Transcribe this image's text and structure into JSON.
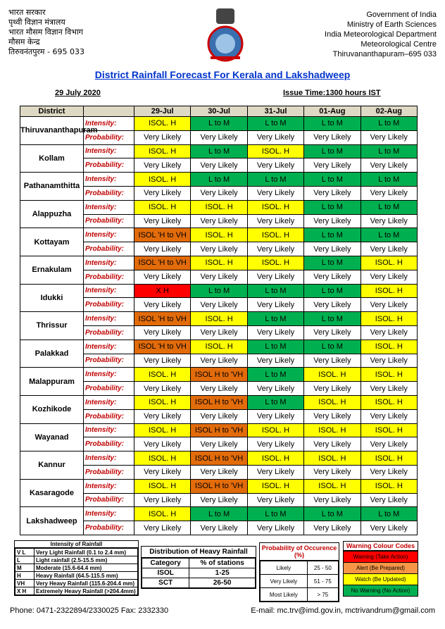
{
  "header": {
    "left": [
      "भारत सरकार",
      "पृथ्वी विज्ञान मंत्रालय",
      "भारत मौसम विज्ञान विभाग",
      "मौसम केन्द्र",
      "तिरुवनंतपुरम - 695 033"
    ],
    "right": [
      "Government of India",
      "Ministry of Earth Sciences",
      "India Meteorological Department",
      "Meteorological Centre",
      "Thiruvananthapuram–695 033"
    ]
  },
  "title": "District Rainfall Forecast For Kerala and Lakshadweep",
  "date": "29 July 2020",
  "issue_time": "Issue Time:1300 hours IST",
  "table": {
    "district_header": "District",
    "days": [
      "29-Jul",
      "30-Jul",
      "31-Jul",
      "01-Aug",
      "02-Aug"
    ],
    "intensity_label": "Intensity:",
    "probability_label": "Probability:",
    "rows": [
      {
        "district": "Thiruvananthapuram",
        "intensity": [
          "ISOL. H",
          "L to M",
          "L to M",
          "L to M",
          "L to M"
        ],
        "colors": [
          "yellow",
          "#00b050",
          "#00b050",
          "#00b050",
          "#00b050"
        ],
        "probability": [
          "Very Likely",
          "Very Likely",
          "Very Likely",
          "Very Likely",
          "Very Likely"
        ]
      },
      {
        "district": "Kollam",
        "intensity": [
          "ISOL. H",
          "L to M",
          "ISOL. H",
          "L to M",
          "L to M"
        ],
        "colors": [
          "yellow",
          "#00b050",
          "yellow",
          "#00b050",
          "#00b050"
        ],
        "probability": [
          "Very Likely",
          "Very Likely",
          "Very Likely",
          "Very Likely",
          "Very Likely"
        ]
      },
      {
        "district": "Pathanamthitta",
        "intensity": [
          "ISOL. H",
          "L to M",
          "L to M",
          "L to M",
          "L to M"
        ],
        "colors": [
          "yellow",
          "#00b050",
          "#00b050",
          "#00b050",
          "#00b050"
        ],
        "probability": [
          "Very Likely",
          "Very Likely",
          "Very Likely",
          "Very Likely",
          "Very Likely"
        ]
      },
      {
        "district": "Alappuzha",
        "intensity": [
          "ISOL. H",
          "ISOL. H",
          "ISOL. H",
          "L to M",
          "L to M"
        ],
        "colors": [
          "yellow",
          "yellow",
          "yellow",
          "#00b050",
          "#00b050"
        ],
        "probability": [
          "Very Likely",
          "Very Likely",
          "Very Likely",
          "Very Likely",
          "Very Likely"
        ]
      },
      {
        "district": "Kottayam",
        "intensity": [
          "ISOL 'H to VH",
          "ISOL. H",
          "ISOL. H",
          "L to M",
          "L to M"
        ],
        "colors": [
          "#e26b0a",
          "yellow",
          "yellow",
          "#00b050",
          "#00b050"
        ],
        "probability": [
          "Very Likely",
          "Very Likely",
          "Very Likely",
          "Very Likely",
          "Very Likely"
        ]
      },
      {
        "district": "Ernakulam",
        "intensity": [
          "ISOL 'H to VH",
          "ISOL. H",
          "ISOL. H",
          "L to M",
          "ISOL. H"
        ],
        "colors": [
          "#e26b0a",
          "yellow",
          "yellow",
          "#00b050",
          "yellow"
        ],
        "probability": [
          "Very Likely",
          "Very Likely",
          "Very Likely",
          "Very Likely",
          "Very Likely"
        ]
      },
      {
        "district": "Idukki",
        "intensity": [
          "X H",
          "L to M",
          "L to M",
          "L to M",
          "ISOL. H"
        ],
        "colors": [
          "red",
          "#00b050",
          "#00b050",
          "#00b050",
          "yellow"
        ],
        "probability": [
          "Very Likely",
          "Very Likely",
          "Very Likely",
          "Very Likely",
          "Very Likely"
        ]
      },
      {
        "district": "Thrissur",
        "intensity": [
          "ISOL 'H to VH",
          "ISOL. H",
          "L to M",
          "L to M",
          "ISOL. H"
        ],
        "colors": [
          "#e26b0a",
          "yellow",
          "#00b050",
          "#00b050",
          "yellow"
        ],
        "probability": [
          "Very Likely",
          "Very Likely",
          "Very Likely",
          "Very Likely",
          "Very Likely"
        ]
      },
      {
        "district": "Palakkad",
        "intensity": [
          "ISOL 'H to VH",
          "ISOL. H",
          "L to M",
          "L to M",
          "ISOL. H"
        ],
        "colors": [
          "#e26b0a",
          "yellow",
          "#00b050",
          "#00b050",
          "yellow"
        ],
        "probability": [
          "Very Likely",
          "Very Likely",
          "Very Likely",
          "Very Likely",
          "Very Likely"
        ]
      },
      {
        "district": "Malappuram",
        "intensity": [
          "ISOL. H",
          "ISOL H to 'VH",
          "L to M",
          "ISOL. H",
          "ISOL. H"
        ],
        "colors": [
          "yellow",
          "#e26b0a",
          "#00b050",
          "yellow",
          "yellow"
        ],
        "probability": [
          "Very Likely",
          "Very Likely",
          "Very Likely",
          "Very Likely",
          "Very Likely"
        ]
      },
      {
        "district": "Kozhikode",
        "intensity": [
          "ISOL. H",
          "ISOL H to 'VH",
          "L to M",
          "ISOL. H",
          "ISOL. H"
        ],
        "colors": [
          "yellow",
          "#e26b0a",
          "#00b050",
          "yellow",
          "yellow"
        ],
        "probability": [
          "Very Likely",
          "Very Likely",
          "Very Likely",
          "Very Likely",
          "Very Likely"
        ]
      },
      {
        "district": "Wayanad",
        "intensity": [
          "ISOL. H",
          "ISOL H to 'VH",
          "ISOL. H",
          "ISOL. H",
          "ISOL. H"
        ],
        "colors": [
          "yellow",
          "#e26b0a",
          "yellow",
          "yellow",
          "yellow"
        ],
        "probability": [
          "Very Likely",
          "Very Likely",
          "Very Likely",
          "Very Likely",
          "Very Likely"
        ]
      },
      {
        "district": "Kannur",
        "intensity": [
          "ISOL. H",
          "ISOL H to 'VH",
          "ISOL. H",
          "ISOL. H",
          "ISOL. H"
        ],
        "colors": [
          "yellow",
          "#e26b0a",
          "yellow",
          "yellow",
          "yellow"
        ],
        "probability": [
          "Very Likely",
          "Very Likely",
          "Very Likely",
          "Very Likely",
          "Very Likely"
        ]
      },
      {
        "district": "Kasaragode",
        "intensity": [
          "ISOL. H",
          "ISOL H to 'VH",
          "ISOL. H",
          "ISOL. H",
          "ISOL. H"
        ],
        "colors": [
          "yellow",
          "#e26b0a",
          "yellow",
          "yellow",
          "yellow"
        ],
        "probability": [
          "Very Likely",
          "Very Likely",
          "Very Likely",
          "Very Likely",
          "Very Likely"
        ]
      },
      {
        "district": "Lakshadweep",
        "intensity": [
          "ISOL. H",
          "L to M",
          "L to M",
          "L to M",
          "L to M"
        ],
        "colors": [
          "yellow",
          "#00b050",
          "#00b050",
          "#00b050",
          "#00b050"
        ],
        "probability": [
          "Very Likely",
          "Very Likely",
          "Very Likely",
          "Very Likely",
          "Very Likely"
        ]
      }
    ]
  },
  "intensity_legend": {
    "title": "Intensity of Rainfall",
    "rows": [
      [
        "V L",
        "Very Light Rainfall (0.1 to 2.4 mm)"
      ],
      [
        "L",
        "Light rainfall (2.5-15.5 mm)"
      ],
      [
        "M",
        "Moderate (15.6-64.4 mm)"
      ],
      [
        "H",
        "Heavy Rainfall (64.5-115.5 mm)"
      ],
      [
        "VH",
        "Very Heavy Rainfall (115.6-204.4 mm)"
      ],
      [
        "X H",
        "Extremely Heavy Rainfall (>204.4mm)"
      ]
    ]
  },
  "distribution": {
    "title": "Distribution of Heavy Rainfall",
    "header": [
      "Category",
      "% of stations"
    ],
    "rows": [
      [
        "ISOL",
        "1-25"
      ],
      [
        "SCT",
        "26-50"
      ]
    ]
  },
  "probability_legend": {
    "title": "Probability of Occurence (%)",
    "rows": [
      [
        "Likely",
        "25 - 50"
      ],
      [
        "Very Likely",
        "51 - 75"
      ],
      [
        "Most Likely",
        "> 75"
      ]
    ]
  },
  "warning_codes": {
    "title": "Warning Colour Codes",
    "rows": [
      {
        "label": "Warning (Take Action)",
        "color": "red"
      },
      {
        "label": "Alert (Be Prepared)",
        "color": "#f79646"
      },
      {
        "label": "Watch (Be Updated)",
        "color": "yellow"
      },
      {
        "label": "No Warning (No Action)",
        "color": "#00b050"
      }
    ]
  },
  "footer": {
    "phone": "Phone: 0471-2322894/2330025 Fax: 2332330",
    "email": "E-mail: mc.trv@imd.gov.in, mctrivandrum@gmail.com"
  }
}
